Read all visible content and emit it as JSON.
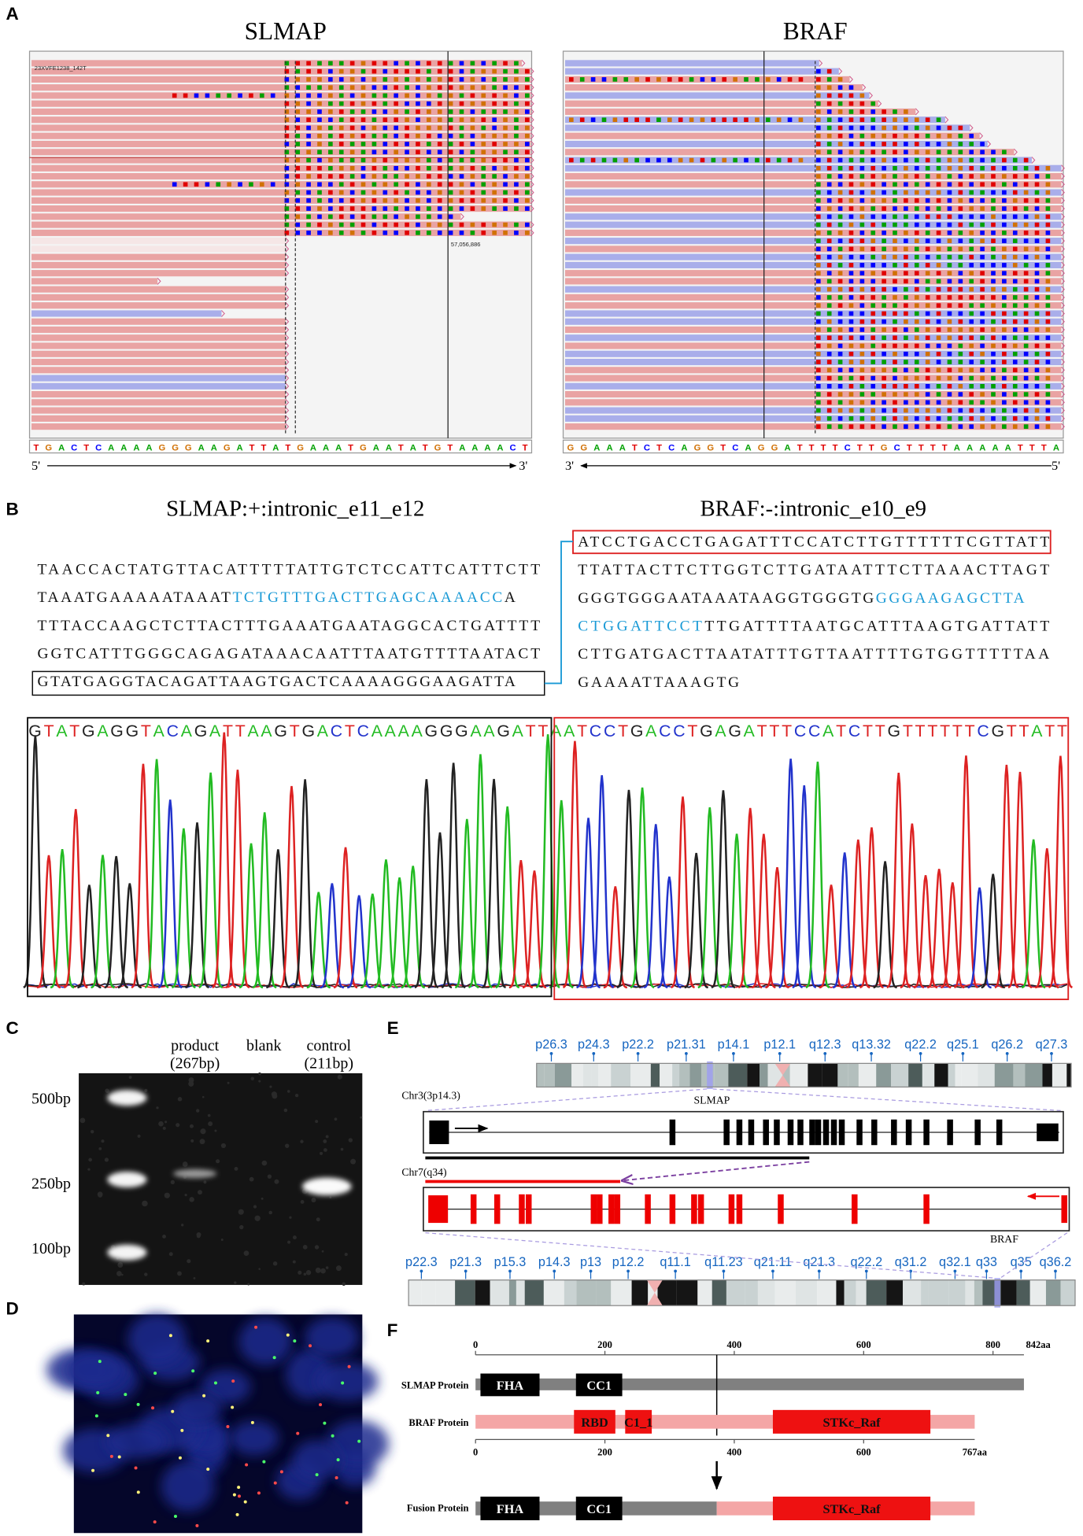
{
  "panel_labels": [
    "A",
    "B",
    "C",
    "D",
    "E",
    "F"
  ],
  "panel_a": {
    "slmap": {
      "title": "SLMAP",
      "read_name": "23XVFE1238_142T",
      "coordinate": "57,056,886",
      "reference": "TGACTCAAAAGGGAAGATTATGAAATGAATATGTAAAACT",
      "left_end": "5'",
      "right_end": "3'"
    },
    "braf": {
      "title": "BRAF",
      "reference": "GGAAATCTCAGGTCAGGATTTTCTTGCTTTTAAAAATTTA",
      "left_end": "3'",
      "right_end": "5'"
    }
  },
  "panel_b": {
    "slmap": {
      "title": "SLMAP:+:intronic_e11_e12",
      "lines": [
        [
          {
            "text": "TAACCACTATGTTACATTTTTATTGTCTCCATTCATTTCTT",
            "color": "#111111"
          }
        ],
        [
          {
            "text": "TAAATGAAAAATAAAT",
            "color": "#111111"
          },
          {
            "text": "TCTGTTTGACTTGAGCAAAACC",
            "color": "#1a9ad6"
          },
          {
            "text": "A",
            "color": "#111111"
          }
        ],
        [
          {
            "text": "TTTACCAAGCTCTTACTTTGAAATGAATAGGCACTGATTTT",
            "color": "#111111"
          }
        ],
        [
          {
            "text": "GGTCATTTGGGCAGAGATAAACAATTTAATGTTTTAATACT",
            "color": "#111111"
          }
        ],
        [
          {
            "text": "GTATGAGGTACAGATTAAGTGACTCAAAAGGGAAGATTA",
            "color": "#111111"
          }
        ]
      ]
    },
    "braf": {
      "title": "BRAF:-:intronic_e10_e9",
      "lines": [
        [
          {
            "text": "ATCCTGACCTGAGATTTCCATCTTGTTTTTTCGTTATT",
            "color": "#111111"
          }
        ],
        [
          {
            "text": "TTATTACTTCTTGGTCTTGATAATTTCTTAAACTTAGT",
            "color": "#111111"
          }
        ],
        [
          {
            "text": "GGGTGGGAATAAATAAGGTGGGTG",
            "color": "#111111"
          },
          {
            "text": "GGGAAGAGCTTA",
            "color": "#1a9ad6"
          }
        ],
        [
          {
            "text": "CTGGATTCCT",
            "color": "#1a9ad6"
          },
          {
            "text": "TTGATTTTAATGCATTTAAGTGATTATT",
            "color": "#111111"
          }
        ],
        [
          {
            "text": "CTTGATGACTTAATATTTGTTAATTTTGTGGTTTTTAA",
            "color": "#111111"
          }
        ],
        [
          {
            "text": "GAAAATTAAAGTG",
            "color": "#111111"
          }
        ]
      ]
    },
    "chromatogram": "GTATGAGGTACAGATTAAGTGACTCAAAAGGGAAGATTAATCCTGACCTGAGATTTCCATCTTGTTTTTTCGTTATT"
  },
  "panel_c": {
    "lanes": [
      {
        "name": "product",
        "size": "(267bp)"
      },
      {
        "name": "blank"
      },
      {
        "name": "control",
        "size": "(211bp)"
      }
    ],
    "markers": [
      "500bp",
      "250bp",
      "100bp"
    ]
  },
  "panel_e": {
    "chr3_bands": [
      "p26.3",
      "p24.3",
      "p22.2",
      "p21.31",
      "p14.1",
      "p12.1",
      "q12.3",
      "q13.32",
      "q22.2",
      "q25.1",
      "q26.2",
      "q27.3"
    ],
    "chr3_label": "Chr3(3p14.3)",
    "slmap_label": "SLMAP",
    "chr7_label": "Chr7(q34)",
    "braf_label": "BRAF",
    "chr7_bands": [
      "p22.3",
      "p21.3",
      "p15.3",
      "p14.3",
      "p13",
      "p12.2",
      "q11.1",
      "q11.23",
      "q21.11",
      "q21.3",
      "q22.2",
      "q31.2",
      "q32.1",
      "q33",
      "q35",
      "q36.2"
    ]
  },
  "panel_f": {
    "top_ticks": [
      0,
      200,
      400,
      600,
      800
    ],
    "top_end": "842aa",
    "bottom_ticks": [
      0,
      200,
      400,
      600
    ],
    "bottom_end": "767aa",
    "proteins": {
      "slmap": "SLMAP Protein",
      "braf": "BRAF Protein",
      "fusion": "Fusion Protein"
    },
    "domains": {
      "fha": "FHA",
      "cc1": "CC1",
      "rbd": "RBD",
      "c1": "C1_1",
      "kinase": "STKc_Raf"
    }
  }
}
